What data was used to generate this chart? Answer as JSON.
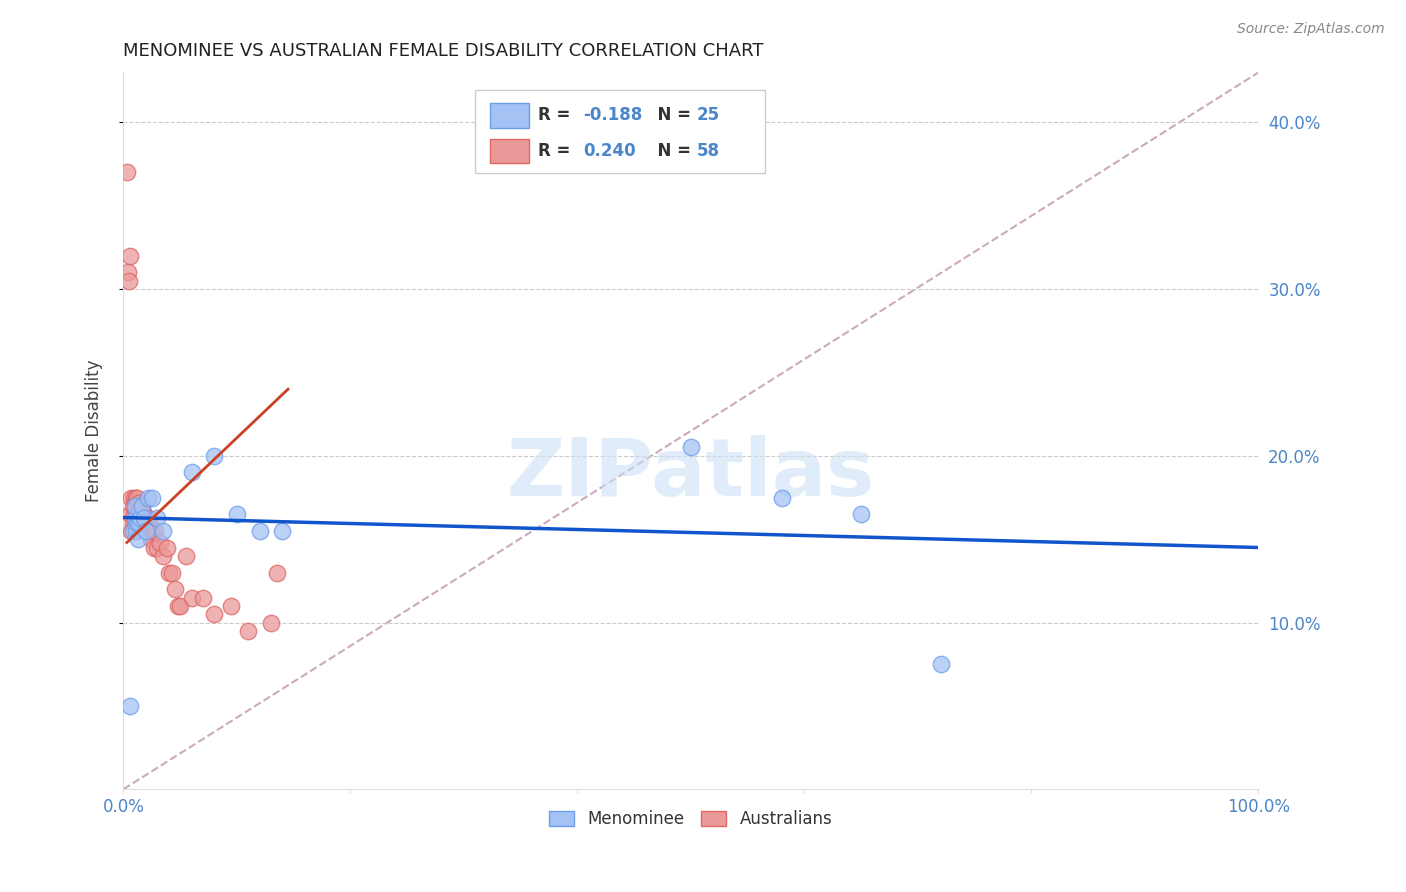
{
  "title": "MENOMINEE VS AUSTRALIAN FEMALE DISABILITY CORRELATION CHART",
  "source": "Source: ZipAtlas.com",
  "ylabel": "Female Disability",
  "xlim": [
    0.0,
    1.0
  ],
  "ylim": [
    0.0,
    0.43
  ],
  "yticks": [
    0.1,
    0.2,
    0.3,
    0.4
  ],
  "ytick_labels": [
    "10.0%",
    "20.0%",
    "30.0%",
    "40.0%"
  ],
  "axis_color": "#4a86c8",
  "blue_fill": "#a4c2f4",
  "blue_edge": "#6d9eeb",
  "pink_fill": "#ea9999",
  "pink_edge": "#e06666",
  "blue_line_color": "#1155cc",
  "pink_line_color": "#cc4125",
  "ref_line_color": "#ccaabb",
  "watermark_color": "#cce0f5",
  "legend_text_color": "#4a86c8",
  "menominee_x": [
    0.006,
    0.008,
    0.01,
    0.01,
    0.011,
    0.012,
    0.013,
    0.014,
    0.015,
    0.016,
    0.018,
    0.02,
    0.022,
    0.025,
    0.03,
    0.035,
    0.06,
    0.08,
    0.1,
    0.12,
    0.14,
    0.5,
    0.58,
    0.65,
    0.72
  ],
  "menominee_y": [
    0.05,
    0.155,
    0.163,
    0.17,
    0.155,
    0.16,
    0.15,
    0.16,
    0.163,
    0.17,
    0.163,
    0.155,
    0.175,
    0.175,
    0.163,
    0.155,
    0.19,
    0.2,
    0.165,
    0.155,
    0.155,
    0.205,
    0.175,
    0.165,
    0.075
  ],
  "australian_x": [
    0.003,
    0.004,
    0.005,
    0.006,
    0.006,
    0.007,
    0.007,
    0.008,
    0.008,
    0.009,
    0.009,
    0.01,
    0.01,
    0.01,
    0.011,
    0.011,
    0.012,
    0.012,
    0.013,
    0.013,
    0.014,
    0.014,
    0.015,
    0.015,
    0.016,
    0.016,
    0.017,
    0.017,
    0.018,
    0.018,
    0.019,
    0.019,
    0.02,
    0.02,
    0.021,
    0.022,
    0.023,
    0.024,
    0.025,
    0.027,
    0.028,
    0.03,
    0.032,
    0.035,
    0.038,
    0.04,
    0.043,
    0.045,
    0.048,
    0.05,
    0.055,
    0.06,
    0.07,
    0.08,
    0.095,
    0.11,
    0.13,
    0.135
  ],
  "australian_y": [
    0.37,
    0.31,
    0.305,
    0.32,
    0.165,
    0.175,
    0.155,
    0.17,
    0.16,
    0.175,
    0.165,
    0.172,
    0.168,
    0.16,
    0.175,
    0.163,
    0.175,
    0.162,
    0.172,
    0.165,
    0.165,
    0.158,
    0.168,
    0.162,
    0.17,
    0.163,
    0.165,
    0.158,
    0.165,
    0.16,
    0.163,
    0.158,
    0.16,
    0.155,
    0.16,
    0.163,
    0.158,
    0.15,
    0.155,
    0.145,
    0.155,
    0.145,
    0.148,
    0.14,
    0.145,
    0.13,
    0.13,
    0.12,
    0.11,
    0.11,
    0.14,
    0.115,
    0.115,
    0.105,
    0.11,
    0.095,
    0.1,
    0.13
  ],
  "blue_trend_x": [
    0.0,
    1.0
  ],
  "blue_trend_y": [
    0.163,
    0.145
  ],
  "pink_trend_x": [
    0.003,
    0.145
  ],
  "pink_trend_y": [
    0.148,
    0.24
  ],
  "ref_line_x": [
    0.0,
    1.0
  ],
  "ref_line_y": [
    0.0,
    0.43
  ]
}
